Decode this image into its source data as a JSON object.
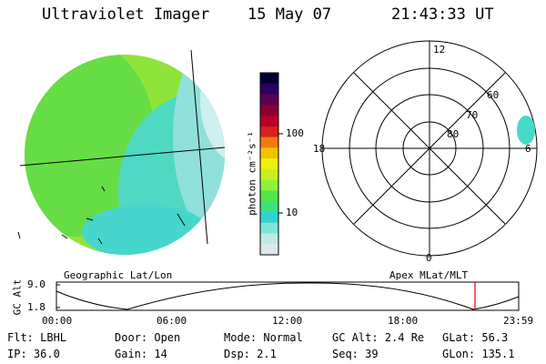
{
  "header": {
    "instrument": "Ultraviolet Imager",
    "date": "15 May 07",
    "time": "21:43:33 UT"
  },
  "colorbar": {
    "unit_label": "photon cm⁻²s⁻¹",
    "ticks": [
      "100",
      "10"
    ],
    "colors": [
      "#dce8ea",
      "#bfe9e6",
      "#7ee6dc",
      "#2fd3cf",
      "#3fe07e",
      "#55e64a",
      "#8ef23a",
      "#c8f020",
      "#eef010",
      "#f4c000",
      "#f07a10",
      "#d81f1f",
      "#b60025",
      "#8a0030",
      "#5a0050",
      "#2a0060",
      "#000030"
    ]
  },
  "left_panel": {
    "caption": "Geographic Lat/Lon"
  },
  "polar_plot": {
    "caption": "Apex MLat/MLT",
    "mlt_labels": {
      "top": "12",
      "left": "18",
      "right": "6",
      "bottom": "0"
    },
    "lat_labels": [
      "60",
      "70",
      "80"
    ]
  },
  "altitude_strip": {
    "axis_label": "GC Alt",
    "y_ticks": [
      "9.0",
      "1.8"
    ],
    "x_ticks": [
      "00:00",
      "06:00",
      "12:00",
      "18:00",
      "23:59"
    ],
    "current_marker_time": "21:43",
    "marker_color": "#e00000"
  },
  "info": {
    "row1": {
      "flt": "Flt: LBHL",
      "door": "Door: Open",
      "mode": "Mode: Normal",
      "gcalt": "GC Alt: 2.4 Re",
      "glat": "GLat:  56.3"
    },
    "row2": {
      "ip": "IP: 36.0",
      "gain": "Gain: 14",
      "dsp": "Dsp:    2.1",
      "seq": "Seq: 39",
      "glon": "GLon: 135.1"
    }
  }
}
